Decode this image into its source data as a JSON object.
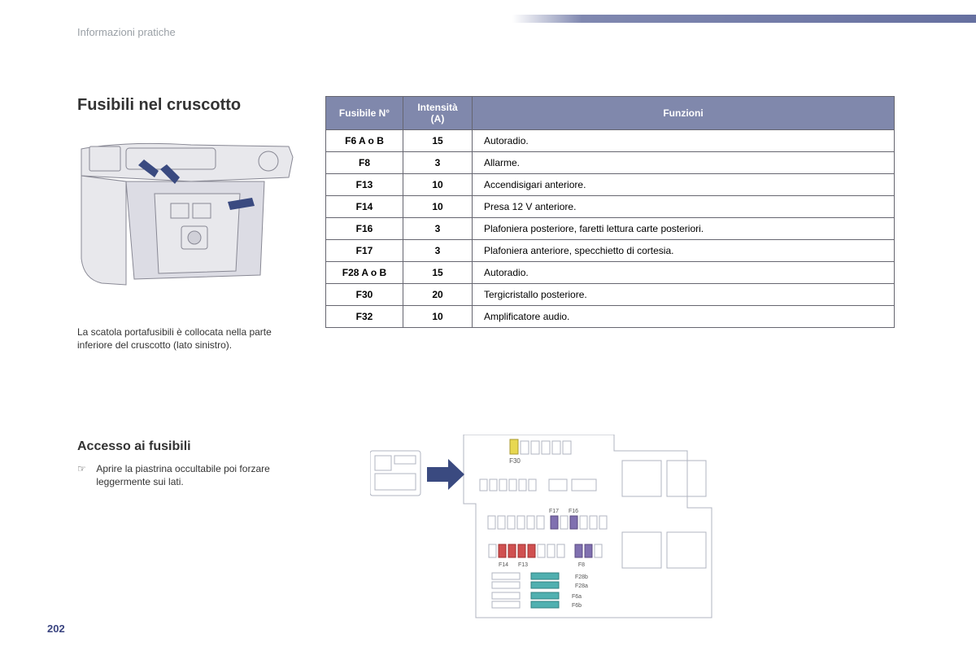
{
  "header": {
    "section_label": "Informazioni pratiche",
    "bar_gradient_from": "#ffffff",
    "bar_gradient_to": "#6670a0"
  },
  "title": "Fusibili nel cruscotto",
  "caption": "La scatola portafusibili è collocata nella parte inferiore del cruscotto (lato sinistro).",
  "subtitle": "Accesso ai fusibili",
  "instruction_marker": "☞",
  "instruction_text": "Aprire la piastrina occultabile poi forzare leggermente sui lati.",
  "table": {
    "headers": {
      "fuse": "Fusibile N°",
      "intensity": "Intensità (A)",
      "functions": "Funzioni"
    },
    "header_bg": "#8088ac",
    "header_fg": "#ffffff",
    "border_color": "#666670",
    "rows": [
      {
        "fuse": "F6 A o B",
        "intensity": "15",
        "func": "Autoradio."
      },
      {
        "fuse": "F8",
        "intensity": "3",
        "func": "Allarme."
      },
      {
        "fuse": "F13",
        "intensity": "10",
        "func": "Accendisigari anteriore."
      },
      {
        "fuse": "F14",
        "intensity": "10",
        "func": "Presa 12 V anteriore."
      },
      {
        "fuse": "F16",
        "intensity": "3",
        "func": "Plafoniera posteriore, faretti lettura carte posteriori."
      },
      {
        "fuse": "F17",
        "intensity": "3",
        "func": "Plafoniera anteriore, specchietto di cortesia."
      },
      {
        "fuse": "F28 A o B",
        "intensity": "15",
        "func": "Autoradio."
      },
      {
        "fuse": "F30",
        "intensity": "20",
        "func": "Tergicristallo posteriore."
      },
      {
        "fuse": "F32",
        "intensity": "10",
        "func": "Amplificatore audio."
      }
    ]
  },
  "page_number": "202",
  "diagram": {
    "arrow_color": "#3a4a80",
    "line_color": "#b0b4c0",
    "labels": [
      "F30",
      "F17",
      "F16",
      "F14",
      "F13",
      "F8",
      "F28b",
      "F28a",
      "F6a",
      "F6b"
    ],
    "fuse_colors": {
      "yellow": "#e8d850",
      "purple": "#8070b0",
      "red": "#d05050",
      "teal": "#50b0b0",
      "grey": "#c8ccd4"
    }
  }
}
